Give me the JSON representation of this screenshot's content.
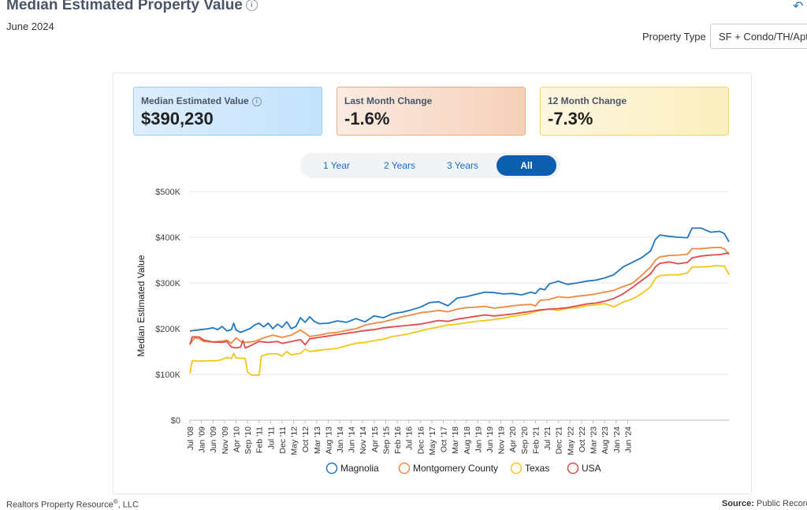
{
  "header": {
    "title": "Median Estimated Property Value",
    "date": "June 2024",
    "property_type_label": "Property Type",
    "property_type_value": "SF + Condo/TH/Apt"
  },
  "stats": {
    "median": {
      "label": "Median Estimated Value",
      "value": "$390,230"
    },
    "last_month": {
      "label": "Last Month Change",
      "value": "-1.6%"
    },
    "twelve_month": {
      "label": "12 Month Change",
      "value": "-7.3%"
    }
  },
  "range_buttons": [
    "1 Year",
    "2 Years",
    "3 Years",
    "All"
  ],
  "active_range": "All",
  "footer": {
    "left": "Realtors Property Resource",
    "left_mark": "®",
    "left_suffix": ", LLC",
    "right_label": "Source:",
    "right_value": "Public Records"
  },
  "chart_data": {
    "type": "line",
    "ylabel": "Median Estimated Value",
    "yticks": [
      "$0",
      "$100K",
      "$200K",
      "$300K",
      "$400K",
      "$500K"
    ],
    "ylim": [
      0,
      500000
    ],
    "xtick_labels": [
      "Jul '08",
      "Jan '09",
      "Jun '09",
      "Nov '09",
      "Apr '10",
      "Sep '10",
      "Feb '11",
      "Jul '11",
      "Dec '11",
      "May '12",
      "Oct '12",
      "Mar '13",
      "Aug '13",
      "Jan '14",
      "Jun '14",
      "Nov '14",
      "Apr '15",
      "Sep '15",
      "Feb '16",
      "Jul '16",
      "Dec '16",
      "May '17",
      "Oct '17",
      "Mar '18",
      "Aug '18",
      "Jan '19",
      "Jun '19",
      "Nov '19",
      "Apr '20",
      "Sep '20",
      "Feb '21",
      "Jul '21",
      "Dec '21",
      "May '22",
      "Oct '22",
      "Mar '23",
      "Aug '23",
      "Jan '24",
      "Jun '24"
    ],
    "grid": true,
    "legend_position": "bottom",
    "series": [
      {
        "name": "Magnolia",
        "color": "#1f77c4",
        "points": [
          [
            0,
            195000
          ],
          [
            8,
            200000
          ],
          [
            10,
            202000
          ],
          [
            12,
            198000
          ],
          [
            14,
            205000
          ],
          [
            16,
            195000
          ],
          [
            18,
            198000
          ],
          [
            19,
            212000
          ],
          [
            20,
            197000
          ],
          [
            22,
            192000
          ],
          [
            24,
            196000
          ],
          [
            26,
            200000
          ],
          [
            28,
            208000
          ],
          [
            30,
            212000
          ],
          [
            32,
            204000
          ],
          [
            34,
            212000
          ],
          [
            36,
            200000
          ],
          [
            38,
            210000
          ],
          [
            40,
            203000
          ],
          [
            42,
            215000
          ],
          [
            44,
            200000
          ],
          [
            46,
            205000
          ],
          [
            48,
            224000
          ],
          [
            50,
            214000
          ],
          [
            52,
            226000
          ],
          [
            54,
            216000
          ],
          [
            56,
            211000
          ],
          [
            60,
            212000
          ],
          [
            64,
            217000
          ],
          [
            68,
            214000
          ],
          [
            72,
            222000
          ],
          [
            76,
            215000
          ],
          [
            80,
            228000
          ],
          [
            84,
            224000
          ],
          [
            88,
            233000
          ],
          [
            92,
            236000
          ],
          [
            96,
            241000
          ],
          [
            100,
            247000
          ],
          [
            104,
            257000
          ],
          [
            108,
            259000
          ],
          [
            112,
            250000
          ],
          [
            116,
            267000
          ],
          [
            120,
            270000
          ],
          [
            124,
            275000
          ],
          [
            128,
            280000
          ],
          [
            132,
            279000
          ],
          [
            136,
            276000
          ],
          [
            140,
            277000
          ],
          [
            144,
            274000
          ],
          [
            148,
            280000
          ],
          [
            150,
            277000
          ],
          [
            152,
            288000
          ],
          [
            154,
            285000
          ],
          [
            156,
            298000
          ],
          [
            160,
            304000
          ],
          [
            162,
            300000
          ],
          [
            164,
            297000
          ],
          [
            168,
            300000
          ],
          [
            172,
            304000
          ],
          [
            176,
            306000
          ],
          [
            180,
            311000
          ],
          [
            184,
            318000
          ],
          [
            188,
            335000
          ],
          [
            192,
            345000
          ],
          [
            196,
            355000
          ],
          [
            200,
            370000
          ],
          [
            202,
            395000
          ],
          [
            204,
            405000
          ],
          [
            208,
            402000
          ],
          [
            212,
            400000
          ],
          [
            216,
            399000
          ],
          [
            218,
            420000
          ],
          [
            222,
            420000
          ],
          [
            226,
            411000
          ],
          [
            230,
            413000
          ],
          [
            232,
            408000
          ],
          [
            234,
            390000
          ]
        ]
      },
      {
        "name": "Montgomery County",
        "color": "#f08a40",
        "points": [
          [
            0,
            166000
          ],
          [
            2,
            180000
          ],
          [
            4,
            178000
          ],
          [
            6,
            172000
          ],
          [
            10,
            171000
          ],
          [
            14,
            173000
          ],
          [
            16,
            175000
          ],
          [
            18,
            168000
          ],
          [
            20,
            180000
          ],
          [
            22,
            172000
          ],
          [
            24,
            170000
          ],
          [
            28,
            172000
          ],
          [
            30,
            176000
          ],
          [
            32,
            180000
          ],
          [
            36,
            186000
          ],
          [
            40,
            181000
          ],
          [
            44,
            186000
          ],
          [
            48,
            197000
          ],
          [
            52,
            183000
          ],
          [
            56,
            186000
          ],
          [
            60,
            190000
          ],
          [
            64,
            192000
          ],
          [
            68,
            196000
          ],
          [
            72,
            200000
          ],
          [
            76,
            208000
          ],
          [
            80,
            212000
          ],
          [
            84,
            215000
          ],
          [
            88,
            220000
          ],
          [
            92,
            226000
          ],
          [
            96,
            230000
          ],
          [
            100,
            235000
          ],
          [
            104,
            237000
          ],
          [
            108,
            240000
          ],
          [
            112,
            237000
          ],
          [
            116,
            243000
          ],
          [
            120,
            246000
          ],
          [
            124,
            247000
          ],
          [
            128,
            249000
          ],
          [
            132,
            245000
          ],
          [
            136,
            247000
          ],
          [
            140,
            250000
          ],
          [
            144,
            252000
          ],
          [
            148,
            253000
          ],
          [
            150,
            250000
          ],
          [
            152,
            262000
          ],
          [
            156,
            264000
          ],
          [
            160,
            270000
          ],
          [
            164,
            268000
          ],
          [
            168,
            271000
          ],
          [
            172,
            273000
          ],
          [
            176,
            276000
          ],
          [
            180,
            280000
          ],
          [
            184,
            284000
          ],
          [
            188,
            292000
          ],
          [
            192,
            299000
          ],
          [
            196,
            316000
          ],
          [
            200,
            335000
          ],
          [
            202,
            350000
          ],
          [
            204,
            357000
          ],
          [
            208,
            360000
          ],
          [
            212,
            361000
          ],
          [
            216,
            363000
          ],
          [
            218,
            375000
          ],
          [
            222,
            375000
          ],
          [
            226,
            377000
          ],
          [
            230,
            378000
          ],
          [
            232,
            375000
          ],
          [
            234,
            362000
          ]
        ]
      },
      {
        "name": "Texas",
        "color": "#f5c518",
        "points": [
          [
            0,
            102000
          ],
          [
            1,
            130000
          ],
          [
            4,
            129000
          ],
          [
            8,
            130000
          ],
          [
            12,
            130000
          ],
          [
            14,
            133000
          ],
          [
            16,
            137000
          ],
          [
            18,
            135000
          ],
          [
            19,
            146000
          ],
          [
            20,
            136000
          ],
          [
            24,
            135000
          ],
          [
            25,
            105000
          ],
          [
            27,
            98000
          ],
          [
            29,
            99000
          ],
          [
            30,
            98000
          ],
          [
            31,
            140000
          ],
          [
            34,
            145000
          ],
          [
            38,
            145000
          ],
          [
            40,
            140000
          ],
          [
            42,
            150000
          ],
          [
            44,
            143000
          ],
          [
            48,
            146000
          ],
          [
            50,
            155000
          ],
          [
            52,
            150000
          ],
          [
            56,
            153000
          ],
          [
            60,
            155000
          ],
          [
            64,
            157000
          ],
          [
            68,
            163000
          ],
          [
            72,
            168000
          ],
          [
            76,
            170000
          ],
          [
            80,
            174000
          ],
          [
            84,
            177000
          ],
          [
            88,
            183000
          ],
          [
            92,
            186000
          ],
          [
            96,
            190000
          ],
          [
            100,
            195000
          ],
          [
            104,
            200000
          ],
          [
            108,
            204000
          ],
          [
            112,
            208000
          ],
          [
            116,
            210000
          ],
          [
            120,
            213000
          ],
          [
            124,
            216000
          ],
          [
            128,
            218000
          ],
          [
            132,
            220000
          ],
          [
            136,
            223000
          ],
          [
            140,
            227000
          ],
          [
            144,
            230000
          ],
          [
            148,
            234000
          ],
          [
            152,
            240000
          ],
          [
            156,
            243000
          ],
          [
            160,
            240000
          ],
          [
            164,
            245000
          ],
          [
            168,
            246000
          ],
          [
            172,
            250000
          ],
          [
            176,
            252000
          ],
          [
            180,
            255000
          ],
          [
            184,
            248000
          ],
          [
            188,
            258000
          ],
          [
            192,
            265000
          ],
          [
            196,
            276000
          ],
          [
            200,
            292000
          ],
          [
            202,
            310000
          ],
          [
            204,
            316000
          ],
          [
            208,
            318000
          ],
          [
            212,
            318000
          ],
          [
            216,
            322000
          ],
          [
            218,
            335000
          ],
          [
            222,
            335000
          ],
          [
            226,
            336000
          ],
          [
            228,
            338000
          ],
          [
            232,
            337000
          ],
          [
            234,
            318000
          ]
        ]
      },
      {
        "name": "USA",
        "color": "#e04a4a",
        "points": [
          [
            0,
            165000
          ],
          [
            1,
            182000
          ],
          [
            4,
            182000
          ],
          [
            6,
            175000
          ],
          [
            10,
            171000
          ],
          [
            14,
            170000
          ],
          [
            16,
            172000
          ],
          [
            18,
            160000
          ],
          [
            20,
            158000
          ],
          [
            22,
            160000
          ],
          [
            23,
            174000
          ],
          [
            24,
            158000
          ],
          [
            26,
            162000
          ],
          [
            28,
            167000
          ],
          [
            30,
            172000
          ],
          [
            34,
            170000
          ],
          [
            38,
            172000
          ],
          [
            40,
            168000
          ],
          [
            44,
            172000
          ],
          [
            48,
            176000
          ],
          [
            50,
            165000
          ],
          [
            52,
            178000
          ],
          [
            56,
            181000
          ],
          [
            60,
            184000
          ],
          [
            64,
            187000
          ],
          [
            68,
            190000
          ],
          [
            72,
            193000
          ],
          [
            76,
            196000
          ],
          [
            80,
            198000
          ],
          [
            84,
            202000
          ],
          [
            88,
            204000
          ],
          [
            92,
            206000
          ],
          [
            96,
            208000
          ],
          [
            100,
            210000
          ],
          [
            104,
            214000
          ],
          [
            108,
            218000
          ],
          [
            112,
            216000
          ],
          [
            116,
            221000
          ],
          [
            120,
            224000
          ],
          [
            124,
            227000
          ],
          [
            128,
            230000
          ],
          [
            132,
            228000
          ],
          [
            136,
            230000
          ],
          [
            140,
            232000
          ],
          [
            144,
            235000
          ],
          [
            148,
            238000
          ],
          [
            152,
            241000
          ],
          [
            156,
            243000
          ],
          [
            160,
            244000
          ],
          [
            164,
            246000
          ],
          [
            168,
            250000
          ],
          [
            172,
            254000
          ],
          [
            176,
            256000
          ],
          [
            180,
            260000
          ],
          [
            184,
            266000
          ],
          [
            188,
            276000
          ],
          [
            192,
            290000
          ],
          [
            196,
            305000
          ],
          [
            200,
            320000
          ],
          [
            202,
            335000
          ],
          [
            204,
            343000
          ],
          [
            208,
            346000
          ],
          [
            212,
            342000
          ],
          [
            216,
            345000
          ],
          [
            218,
            355000
          ],
          [
            222,
            359000
          ],
          [
            226,
            361000
          ],
          [
            230,
            362000
          ],
          [
            232,
            364000
          ],
          [
            234,
            366000
          ]
        ]
      }
    ]
  }
}
